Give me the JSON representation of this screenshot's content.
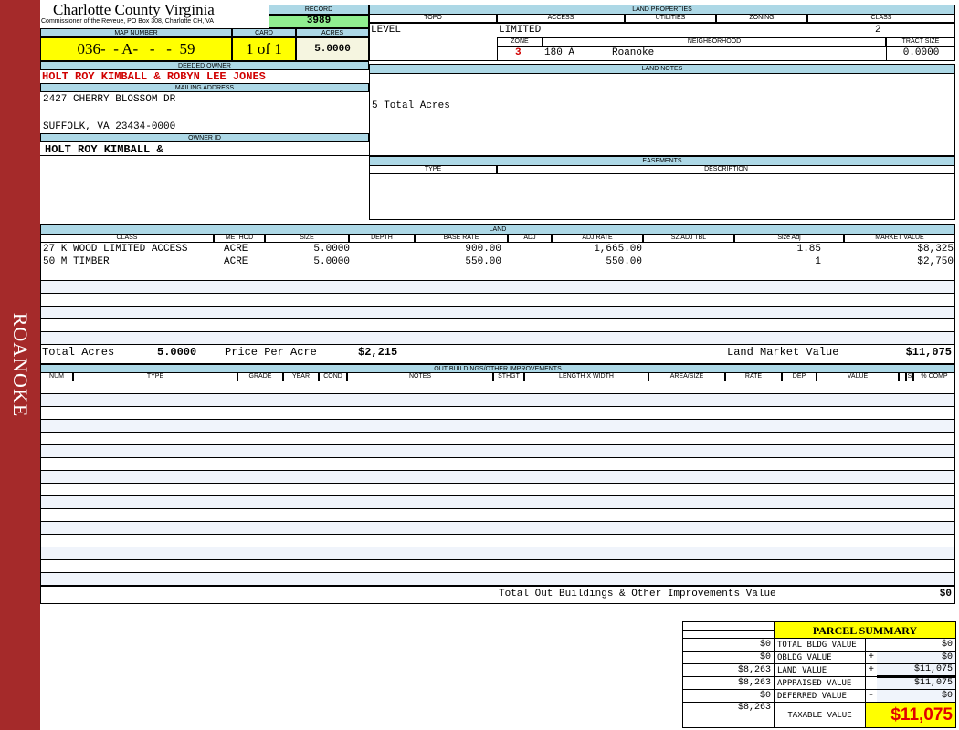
{
  "side_label": "ROANOKE",
  "header": {
    "county": "Charlotte County Virginia",
    "subtitle": "Commissioner of the Reveue, PO Box 308, Charlotte CH, VA",
    "record_label": "RECORD",
    "record": "3989"
  },
  "parcel": {
    "map_number_label": "MAP NUMBER",
    "map_number": "036-  - A-   -   -  59",
    "card_label": "CARD",
    "card": "1 of 1",
    "acres_label": "ACRES",
    "acres": "5.0000"
  },
  "owner": {
    "deeded_label": "DEEDED OWNER",
    "deeded": "HOLT ROY KIMBALL & ROBYN LEE JONES",
    "mailing_label": "MAILING ADDRESS",
    "address1": "2427 CHERRY BLOSSOM DR",
    "address2": "SUFFOLK, VA 23434-0000",
    "owner_id_label": "OWNER ID",
    "owner_id": "HOLT ROY KIMBALL &"
  },
  "land_properties": {
    "title": "LAND PROPERTIES",
    "topo_label": "TOPO",
    "access_label": "ACCESS",
    "utilities_label": "UTILITIES",
    "zoning_label": "ZONING",
    "class_label": "CLASS",
    "topo": "LEVEL",
    "access": "LIMITED",
    "class": "2",
    "zone_label": "ZONE",
    "neighborhood_label": "NEIGHBORHOOD",
    "tract_label": "TRACT SIZE",
    "zone": "3",
    "neighborhood_code": "180 A",
    "neighborhood": "Roanoke",
    "tract_size": "0.0000"
  },
  "land_notes": {
    "title": "LAND NOTES",
    "text": "5 Total Acres"
  },
  "easements": {
    "title": "EASEMENTS",
    "type_label": "TYPE",
    "description_label": "DESCRIPTION"
  },
  "land": {
    "title": "LAND",
    "columns": [
      "CLASS",
      "METHOD",
      "SIZE",
      "DEPTH",
      "BASE RATE",
      "ADJ",
      "ADJ RATE",
      "SZ ADJ TBL",
      "Size Adj",
      "MARKET VALUE"
    ],
    "rows": [
      {
        "class": "27 K WOOD LIMITED ACCESS",
        "method": "ACRE",
        "size": "5.0000",
        "depth": "",
        "base_rate": "900.00",
        "adj": "",
        "adj_rate": "1,665.00",
        "sz_adj_tbl": "",
        "size_adj": "1.85",
        "market_value": "$8,325"
      },
      {
        "class": "50 M TIMBER",
        "method": "ACRE",
        "size": "5.0000",
        "depth": "",
        "base_rate": "550.00",
        "adj": "",
        "adj_rate": "550.00",
        "sz_adj_tbl": "",
        "size_adj": "1",
        "market_value": "$2,750"
      }
    ],
    "total_acres_label": "Total Acres",
    "total_acres": "5.0000",
    "price_per_acre_label": "Price Per Acre",
    "price_per_acre": "$2,215",
    "market_value_label": "Land Market Value",
    "market_value": "$11,075"
  },
  "outbuildings": {
    "title": "OUT BUILDINGS/OTHER IMPROVEMENTS",
    "columns": [
      "NUM",
      "TYPE",
      "GRADE",
      "YEAR",
      "COND",
      "NOTES",
      "STHGT",
      "LENGTH X WIDTH",
      "AREA/SIZE",
      "RATE",
      "DEP",
      "VALUE",
      "",
      "S",
      "% COMP"
    ],
    "total_label": "Total Out Buildings & Other Improvements Value",
    "total": "$0"
  },
  "summary": {
    "title": "PARCEL SUMMARY",
    "rows": [
      {
        "left": "$0",
        "label": "TOTAL BLDG VALUE",
        "op": "",
        "value": "$0"
      },
      {
        "left": "$0",
        "label": "OBLDG VALUE",
        "op": "+",
        "value": "$0"
      },
      {
        "left": "$8,263",
        "label": "LAND VALUE",
        "op": "+",
        "value": "$11,075"
      },
      {
        "left": "$8,263",
        "label": "APPRAISED VALUE",
        "op": "",
        "value": "$11,075"
      },
      {
        "left": "$0",
        "label": "DEFERRED VALUE",
        "op": "-",
        "value": "$0"
      }
    ],
    "taxable_left": "$8,263",
    "taxable_label": "TAXABLE VALUE",
    "taxable": "$11,075",
    "accent": "#ffff00",
    "taxable_color": "#e00000"
  }
}
